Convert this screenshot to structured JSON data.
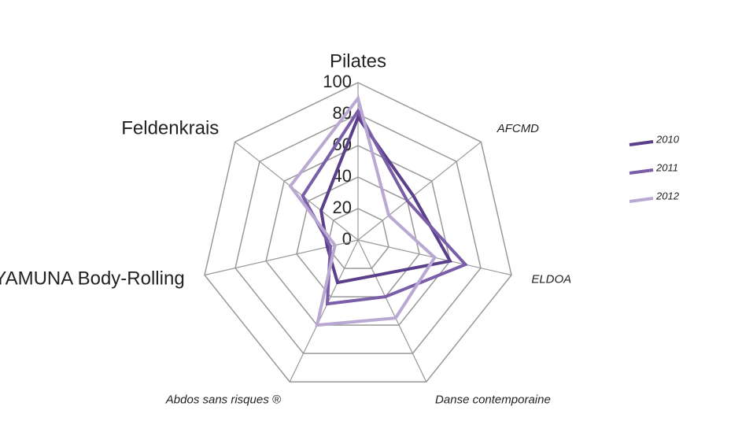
{
  "chart_data": {
    "type": "radar",
    "categories": [
      "Pilates",
      "AFCMD",
      "ELDOA",
      "Danse contemporaine",
      "Abdos sans risques ®",
      "YAMUNA Body-Rolling",
      "Feldenkrais"
    ],
    "series": [
      {
        "name": "2010",
        "color": "#5b3f8a",
        "values": [
          78,
          45,
          60,
          25,
          30,
          20,
          30
        ]
      },
      {
        "name": "2011",
        "color": "#7a5ea8",
        "values": [
          82,
          40,
          70,
          40,
          45,
          18,
          45
        ]
      },
      {
        "name": "2012",
        "color": "#b9a8d2",
        "values": [
          90,
          25,
          50,
          55,
          60,
          15,
          55
        ]
      }
    ],
    "rlim": [
      0,
      100
    ],
    "rticks": [
      0,
      20,
      40,
      60,
      80,
      100
    ],
    "grid": true,
    "legend": "right"
  }
}
